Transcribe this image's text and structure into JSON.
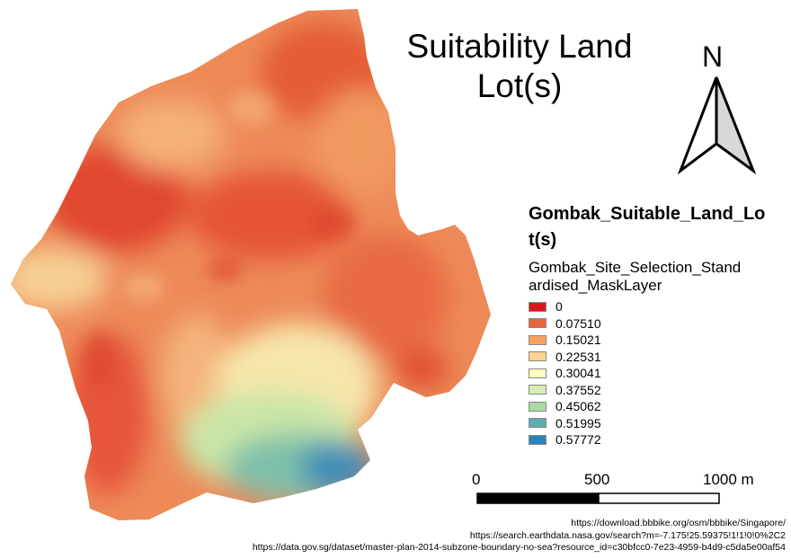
{
  "map": {
    "title": "Suitability Land Lot(s)",
    "north_label": "N",
    "colors": {
      "high": "#e2482b",
      "mid": "#f4a25d",
      "low_green": "#b8dfa3",
      "lowest_blue": "#2f7fb8"
    }
  },
  "legend": {
    "title": "Gombak_Suitable_Land_Lot(s)",
    "subtitle": "Gombak_Site_Selection_Standardised_MaskLayer",
    "items": [
      {
        "label": "0",
        "color": "#d7191c"
      },
      {
        "label": "0.07510",
        "color": "#ea633e"
      },
      {
        "label": "0.15021",
        "color": "#f7a35f"
      },
      {
        "label": "0.22531",
        "color": "#fdd391"
      },
      {
        "label": "0.30041",
        "color": "#ffffbf"
      },
      {
        "label": "0.37552",
        "color": "#d6eeb1"
      },
      {
        "label": "0.45062",
        "color": "#a9dba3"
      },
      {
        "label": "0.51995",
        "color": "#5fadb0"
      },
      {
        "label": "0.57772",
        "color": "#2b83ba"
      }
    ]
  },
  "scale_bar": {
    "labels": [
      "0",
      "500",
      "1000 m"
    ]
  },
  "sources": [
    "https://download.bbbike.org/osm/bbbike/Singapore/",
    "https://search.earthdata.nasa.gov/search?m=-7.175!25.59375!1!1!0!0%2C2",
    "https://data.gov.sg/dataset/master-plan-2014-subzone-boundary-no-sea?resource_id=c30bfcc0-7e23-4959-b4d9-c5da5e00af54"
  ]
}
